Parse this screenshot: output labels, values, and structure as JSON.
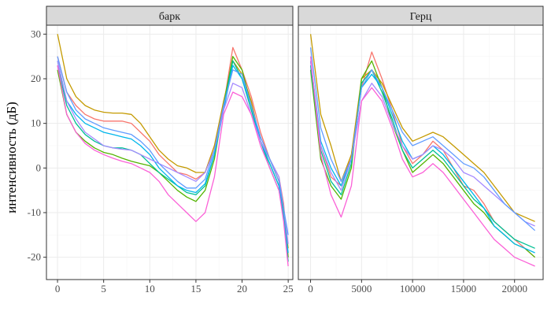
{
  "chart_data": {
    "type": "line",
    "ylabel": "интенсивность (дБ)",
    "ylim": [
      -25,
      32
    ],
    "y_ticks": [
      -20,
      -10,
      0,
      10,
      20,
      30
    ],
    "grid": true,
    "legend": "none",
    "colors": [
      "#F8766D",
      "#C49A00",
      "#53B400",
      "#00C094",
      "#00B6EB",
      "#A58AFF",
      "#619CFF",
      "#FB61D7"
    ],
    "panels": [
      {
        "strip": "барк",
        "xlim": [
          -1.2,
          25.5
        ],
        "x_ticks": [
          0,
          5,
          10,
          15,
          20,
          25
        ],
        "series": [
          {
            "x": [
              0,
              1,
              2,
              3,
              4,
              5,
              6,
              7,
              8,
              9,
              10,
              11,
              12,
              13,
              14,
              15,
              16,
              17,
              18,
              19,
              20,
              21,
              22,
              23,
              24,
              24.5,
              25
            ],
            "y": [
              25,
              17,
              14,
              12,
              11,
              10.5,
              10.5,
              10.5,
              10,
              8,
              6,
              3,
              1,
              -1,
              -1.5,
              -2.5,
              -1,
              5,
              14,
              27,
              22,
              16,
              8,
              2,
              -2,
              -8,
              -20
            ]
          },
          {
            "x": [
              0,
              1,
              2,
              3,
              4,
              5,
              6,
              7,
              8,
              9,
              10,
              11,
              12,
              13,
              14,
              15,
              16,
              17,
              18,
              19,
              20,
              21,
              22,
              23,
              24,
              24.5,
              25
            ],
            "y": [
              30,
              20,
              16,
              14,
              13,
              12.5,
              12.3,
              12.3,
              12,
              10,
              7,
              4,
              2,
              0.5,
              0,
              -1,
              -1,
              5,
              15,
              24,
              21,
              15,
              6,
              2,
              -3,
              -10,
              -18
            ]
          },
          {
            "x": [
              0,
              1,
              2,
              3,
              4,
              5,
              6,
              7,
              8,
              9,
              10,
              11,
              12,
              13,
              14,
              15,
              16,
              17,
              18,
              19,
              20,
              21,
              22,
              23,
              24,
              24.5,
              25
            ],
            "y": [
              22,
              12,
              8,
              6,
              4.5,
              3.5,
              3,
              2.2,
              1.5,
              1,
              0.5,
              -1,
              -3,
              -5,
              -6.5,
              -7.5,
              -5,
              2,
              14,
              25,
              22,
              14,
              6,
              1,
              -4,
              -10,
              -20
            ]
          },
          {
            "x": [
              0,
              1,
              2,
              3,
              4,
              5,
              6,
              7,
              8,
              9,
              10,
              11,
              12,
              13,
              14,
              15,
              16,
              17,
              18,
              19,
              20,
              21,
              22,
              23,
              24,
              24.5,
              25
            ],
            "y": [
              23,
              14,
              10,
              7.5,
              6,
              5,
              4.5,
              4.5,
              4,
              3,
              1,
              -1,
              -2.5,
              -4,
              -5.5,
              -6,
              -4,
              3,
              14,
              24,
              20,
              13,
              6,
              0,
              -5,
              -11,
              -21
            ]
          },
          {
            "x": [
              0,
              1,
              2,
              3,
              4,
              5,
              6,
              7,
              8,
              9,
              10,
              11,
              12,
              13,
              14,
              15,
              16,
              17,
              18,
              19,
              20,
              21,
              22,
              23,
              24,
              24.5,
              25
            ],
            "y": [
              24,
              15,
              12,
              10,
              9,
              8,
              7.5,
              7,
              6.5,
              5,
              3,
              0,
              -2,
              -4,
              -5,
              -5.5,
              -3.5,
              3,
              13,
              23,
              20,
              14,
              6,
              1,
              -4,
              -11,
              -19
            ]
          },
          {
            "x": [
              0,
              1,
              2,
              3,
              4,
              5,
              6,
              7,
              8,
              9,
              10,
              11,
              12,
              13,
              14,
              15,
              16,
              17,
              18,
              19,
              20,
              21,
              22,
              23,
              24,
              24.5,
              25
            ],
            "y": [
              24,
              15,
              11,
              8,
              6.5,
              5,
              4.5,
              4.2,
              4,
              3,
              2,
              1,
              0,
              -1,
              -2,
              -3,
              -1,
              4,
              13,
              19,
              18,
              12,
              6,
              2,
              -2,
              -9,
              -17
            ]
          },
          {
            "x": [
              0,
              1,
              2,
              3,
              4,
              5,
              6,
              7,
              8,
              9,
              10,
              11,
              12,
              13,
              14,
              15,
              16,
              17,
              18,
              19,
              20,
              21,
              22,
              23,
              24,
              24.5,
              25
            ],
            "y": [
              25,
              17,
              13,
              11,
              10,
              9,
              8.5,
              8,
              7.5,
              6,
              4,
              1,
              -1,
              -3,
              -4.5,
              -4.5,
              -2.5,
              4,
              14,
              22,
              21,
              14,
              7,
              2,
              -3,
              -9,
              -15
            ]
          },
          {
            "x": [
              0,
              1,
              2,
              3,
              4,
              5,
              6,
              7,
              8,
              9,
              10,
              11,
              12,
              13,
              14,
              15,
              16,
              17,
              18,
              19,
              20,
              21,
              22,
              23,
              24,
              24.5,
              25
            ],
            "y": [
              23,
              12,
              8,
              5.5,
              4,
              3,
              2.2,
              1.5,
              1,
              0,
              -1,
              -3,
              -6,
              -8,
              -10,
              -12,
              -10,
              -2,
              12,
              17,
              16,
              12,
              5,
              0,
              -5,
              -12,
              -22
            ]
          }
        ]
      },
      {
        "strip": "Герц",
        "xlim": [
          -1200,
          22800
        ],
        "x_ticks": [
          0,
          5000,
          10000,
          15000,
          20000
        ],
        "series": [
          {
            "x": [
              0,
              1000,
              2000,
              3000,
              4000,
              5000,
              6000,
              7000,
              8000,
              9000,
              10000,
              11000,
              12000,
              13000,
              14000,
              15000,
              16000,
              17000,
              18000,
              19000,
              20000,
              21000,
              22000
            ],
            "y": [
              24,
              5,
              -2,
              -4,
              3,
              18,
              26,
              20,
              13,
              5,
              1,
              3,
              6,
              4,
              0,
              -4,
              -5,
              -8,
              -12,
              -14,
              -16,
              -18,
              -20
            ]
          },
          {
            "x": [
              0,
              1000,
              2000,
              3000,
              4000,
              5000,
              6000,
              7000,
              8000,
              9000,
              10000,
              11000,
              12000,
              13000,
              14000,
              15000,
              16000,
              17000,
              18000,
              19000,
              20000,
              21000,
              22000
            ],
            "y": [
              30,
              12,
              5,
              -3,
              3,
              20,
              22,
              19,
              14,
              9,
              6,
              7,
              8,
              7,
              5,
              3,
              1,
              -1,
              -4,
              -7,
              -10,
              -11,
              -12
            ]
          },
          {
            "x": [
              0,
              1000,
              2000,
              3000,
              4000,
              5000,
              6000,
              7000,
              8000,
              9000,
              10000,
              11000,
              12000,
              13000,
              14000,
              15000,
              16000,
              17000,
              18000,
              19000,
              20000,
              21000,
              22000
            ],
            "y": [
              22,
              2,
              -4,
              -7,
              0,
              20,
              24,
              18,
              10,
              4,
              -1,
              1,
              3,
              1,
              -2,
              -5,
              -8,
              -10,
              -13,
              -15,
              -17,
              -18,
              -20
            ]
          },
          {
            "x": [
              0,
              1000,
              2000,
              3000,
              4000,
              5000,
              6000,
              7000,
              8000,
              9000,
              10000,
              11000,
              12000,
              13000,
              14000,
              15000,
              16000,
              17000,
              18000,
              19000,
              20000,
              21000,
              22000
            ],
            "y": [
              23,
              4,
              -3,
              -6,
              1,
              19,
              22,
              17,
              11,
              4,
              0,
              2,
              4,
              2,
              -1,
              -4,
              -7,
              -9,
              -12,
              -14,
              -16,
              -17,
              -18
            ]
          },
          {
            "x": [
              0,
              1000,
              2000,
              3000,
              4000,
              5000,
              6000,
              7000,
              8000,
              9000,
              10000,
              11000,
              12000,
              13000,
              14000,
              15000,
              16000,
              17000,
              18000,
              19000,
              20000,
              21000,
              22000
            ],
            "y": [
              24,
              6,
              0,
              -4,
              2,
              18,
              21,
              18,
              12,
              6,
              2,
              3,
              5,
              3,
              0,
              -3,
              -6,
              -9,
              -13,
              -15,
              -17,
              -18,
              -19
            ]
          },
          {
            "x": [
              0,
              1000,
              2000,
              3000,
              4000,
              5000,
              6000,
              7000,
              8000,
              9000,
              10000,
              11000,
              12000,
              13000,
              14000,
              15000,
              16000,
              17000,
              18000,
              19000,
              20000,
              21000,
              22000
            ],
            "y": [
              24,
              5,
              -1,
              -5,
              2,
              15,
              19,
              16,
              10,
              5,
              2,
              3,
              5,
              4,
              2,
              -1,
              -2,
              -4,
              -6,
              -8,
              -10,
              -12,
              -13
            ]
          },
          {
            "x": [
              0,
              1000,
              2000,
              3000,
              4000,
              5000,
              6000,
              7000,
              8000,
              9000,
              10000,
              11000,
              12000,
              13000,
              14000,
              15000,
              16000,
              17000,
              18000,
              19000,
              20000,
              21000,
              22000
            ],
            "y": [
              27,
              9,
              2,
              -3,
              2,
              18,
              22,
              18,
              13,
              8,
              5,
              6,
              7,
              5,
              3,
              1,
              0,
              -2,
              -5,
              -8,
              -10,
              -12,
              -14
            ]
          },
          {
            "x": [
              0,
              1000,
              2000,
              3000,
              4000,
              5000,
              6000,
              7000,
              8000,
              9000,
              10000,
              11000,
              12000,
              13000,
              14000,
              15000,
              16000,
              17000,
              18000,
              19000,
              20000,
              21000,
              22000
            ],
            "y": [
              25,
              3,
              -6,
              -11,
              -4,
              15,
              18,
              15,
              9,
              2,
              -2,
              -1,
              1,
              -1,
              -4,
              -7,
              -10,
              -13,
              -16,
              -18,
              -20,
              -21,
              -22
            ]
          }
        ]
      }
    ]
  }
}
